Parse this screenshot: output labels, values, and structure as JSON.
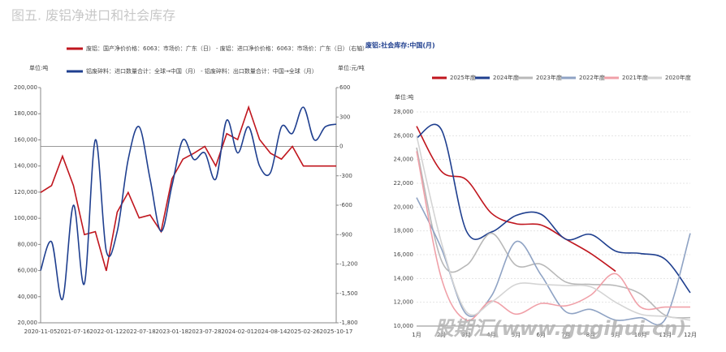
{
  "title": "图五. 废铝净进口和社会库存",
  "watermark": "股期汇(www.gugihui.cn)",
  "chart_data": [
    {
      "type": "line",
      "y_unit_label": "单位:吨",
      "y2_unit_label": "单位:元/吨",
      "categories": [
        "2020-11-05",
        null,
        null,
        "2021-07-16",
        null,
        null,
        "2022-01-12",
        null,
        null,
        "2022-07-18",
        null,
        null,
        "2023-01-18",
        null,
        null,
        "2023-07-28",
        null,
        null,
        "2024-02-01",
        null,
        null,
        "2024-08-14",
        null,
        null,
        "2025-02-26",
        null,
        null,
        "2025-10-17"
      ],
      "series": [
        {
          "name": "废铝：国产净价价格：6063：市场价：广东（日） - 废铝：进口净价价格：6063：市场价：广东（日）（右轴）",
          "color": "#c0161e",
          "axis": "y2",
          "smooth": false,
          "values": [
            -470,
            -400,
            -100,
            -400,
            -900,
            -870,
            -1270,
            -670,
            -470,
            -730,
            -700,
            -870,
            -330,
            -130,
            -70,
            0,
            -200,
            130,
            70,
            400,
            70,
            -70,
            -130,
            0,
            -200,
            -200,
            -200,
            -200
          ]
        },
        {
          "name": "铝废碎料：进口数量合计：全球→中国（月） - 铝废碎料：出口数量合计：中国→全球（月）",
          "color": "#1f3f8f",
          "smooth": true,
          "values": [
            60000,
            82000,
            38000,
            110000,
            50000,
            160000,
            75000,
            90000,
            145000,
            170000,
            130000,
            90000,
            125000,
            160000,
            145000,
            150000,
            130000,
            175000,
            150000,
            170000,
            140000,
            135000,
            170000,
            165000,
            185000,
            160000,
            170000,
            172000
          ]
        }
      ],
      "ylim": [
        20000,
        200000
      ],
      "yticks": [
        {
          "value": 20000,
          "label": "20,000"
        },
        {
          "value": 40000,
          "label": "40,000"
        },
        {
          "value": 60000,
          "label": "60,000"
        },
        {
          "value": 80000,
          "label": "80,000"
        },
        {
          "value": 100000,
          "label": "100,000"
        },
        {
          "value": 120000,
          "label": "120,000"
        },
        {
          "value": 140000,
          "label": "140,000"
        },
        {
          "value": 160000,
          "label": "160,000"
        },
        {
          "value": 180000,
          "label": "180,000"
        },
        {
          "value": 200000,
          "label": "200,000"
        }
      ],
      "y2lim": [
        -1800,
        600
      ],
      "y2ticks": [
        {
          "value": -1800,
          "label": "-1,800"
        },
        {
          "value": -1500,
          "label": "-1,500"
        },
        {
          "value": -1200,
          "label": "-1,200"
        },
        -900,
        -600,
        -300,
        0,
        300,
        600
      ]
    },
    {
      "type": "line",
      "title": "废铝:社会库存:中国(月)",
      "y_unit_label": "单位:吨",
      "categories": [
        "1月",
        "2月",
        "3月",
        "4月",
        "5月",
        "6月",
        "7月",
        "8月",
        "9月",
        "10月",
        "11月",
        "12月"
      ],
      "series": [
        {
          "name": "2025年度",
          "color": "#c0161e",
          "smooth": true,
          "values": [
            26800,
            23000,
            22300,
            19500,
            18600,
            18500,
            17300,
            16100,
            14600,
            null,
            null,
            null
          ]
        },
        {
          "name": "2024年度",
          "color": "#1f3f8f",
          "smooth": true,
          "values": [
            25800,
            26500,
            18000,
            17900,
            19300,
            19400,
            17300,
            17700,
            16300,
            16100,
            15600,
            12800
          ]
        },
        {
          "name": "2023年度",
          "color": "#b8b8b8",
          "smooth": true,
          "values": [
            25000,
            15500,
            15100,
            17800,
            15100,
            15200,
            13700,
            13500,
            13400,
            12700,
            10900,
            10700
          ]
        },
        {
          "name": "2022年度",
          "color": "#8fa3c4",
          "smooth": true,
          "values": [
            20800,
            16500,
            11000,
            12500,
            17100,
            14300,
            11200,
            11400,
            10500,
            10700,
            10600,
            17800
          ]
        },
        {
          "name": "2021年度",
          "color": "#f0a0a8",
          "smooth": true,
          "values": [
            24700,
            14000,
            10500,
            12100,
            11000,
            11900,
            11700,
            12600,
            14400,
            11600,
            11600,
            11600
          ]
        },
        {
          "name": "2020年度",
          "color": "#d4d4d4",
          "smooth": true,
          "values": [
            26000,
            17000,
            11200,
            12000,
            13500,
            13500,
            13400,
            13300,
            12000,
            11000,
            10800,
            10500
          ]
        }
      ],
      "ylim": [
        10000,
        28000
      ],
      "yticks": [
        {
          "value": 10000,
          "label": "10,000"
        },
        {
          "value": 12000,
          "label": "12,000"
        },
        {
          "value": 14000,
          "label": "14,000"
        },
        {
          "value": 16000,
          "label": "16,000"
        },
        {
          "value": 18000,
          "label": "18,000"
        },
        {
          "value": 20000,
          "label": "20,000"
        },
        {
          "value": 22000,
          "label": "22,000"
        },
        {
          "value": 24000,
          "label": "24,000"
        },
        {
          "value": 26000,
          "label": "26,000"
        },
        {
          "value": 28000,
          "label": "28,000"
        }
      ],
      "grid": true
    }
  ]
}
